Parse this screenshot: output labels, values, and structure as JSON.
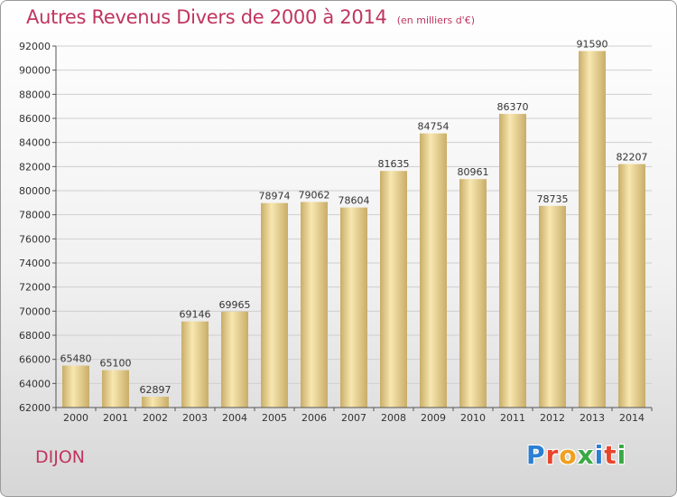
{
  "header": {
    "title": "Autres Revenus Divers de 2000 à 2014",
    "subtitle": "(en milliers d'€)"
  },
  "footer": {
    "city": "DIJON",
    "logo": "Proxiti"
  },
  "colors": {
    "title": "#c03560",
    "bar_light": "#f8e7b0",
    "bar_dark": "#c9ad68",
    "grid": "#cfcfcf"
  },
  "chart_data": {
    "type": "bar",
    "title": "Autres Revenus Divers de 2000 à 2014",
    "xlabel": "",
    "ylabel": "",
    "categories": [
      "2000",
      "2001",
      "2002",
      "2003",
      "2004",
      "2005",
      "2006",
      "2007",
      "2008",
      "2009",
      "2010",
      "2011",
      "2012",
      "2013",
      "2014"
    ],
    "values": [
      65480,
      65100,
      62897,
      69146,
      69965,
      78974,
      79062,
      78604,
      81635,
      84754,
      80961,
      86370,
      78735,
      91590,
      82207
    ],
    "ylim": [
      62000,
      92000
    ],
    "yticks": [
      62000,
      64000,
      66000,
      68000,
      70000,
      72000,
      74000,
      76000,
      78000,
      80000,
      82000,
      84000,
      86000,
      88000,
      90000,
      92000
    ],
    "grid": true,
    "legend": "none"
  }
}
